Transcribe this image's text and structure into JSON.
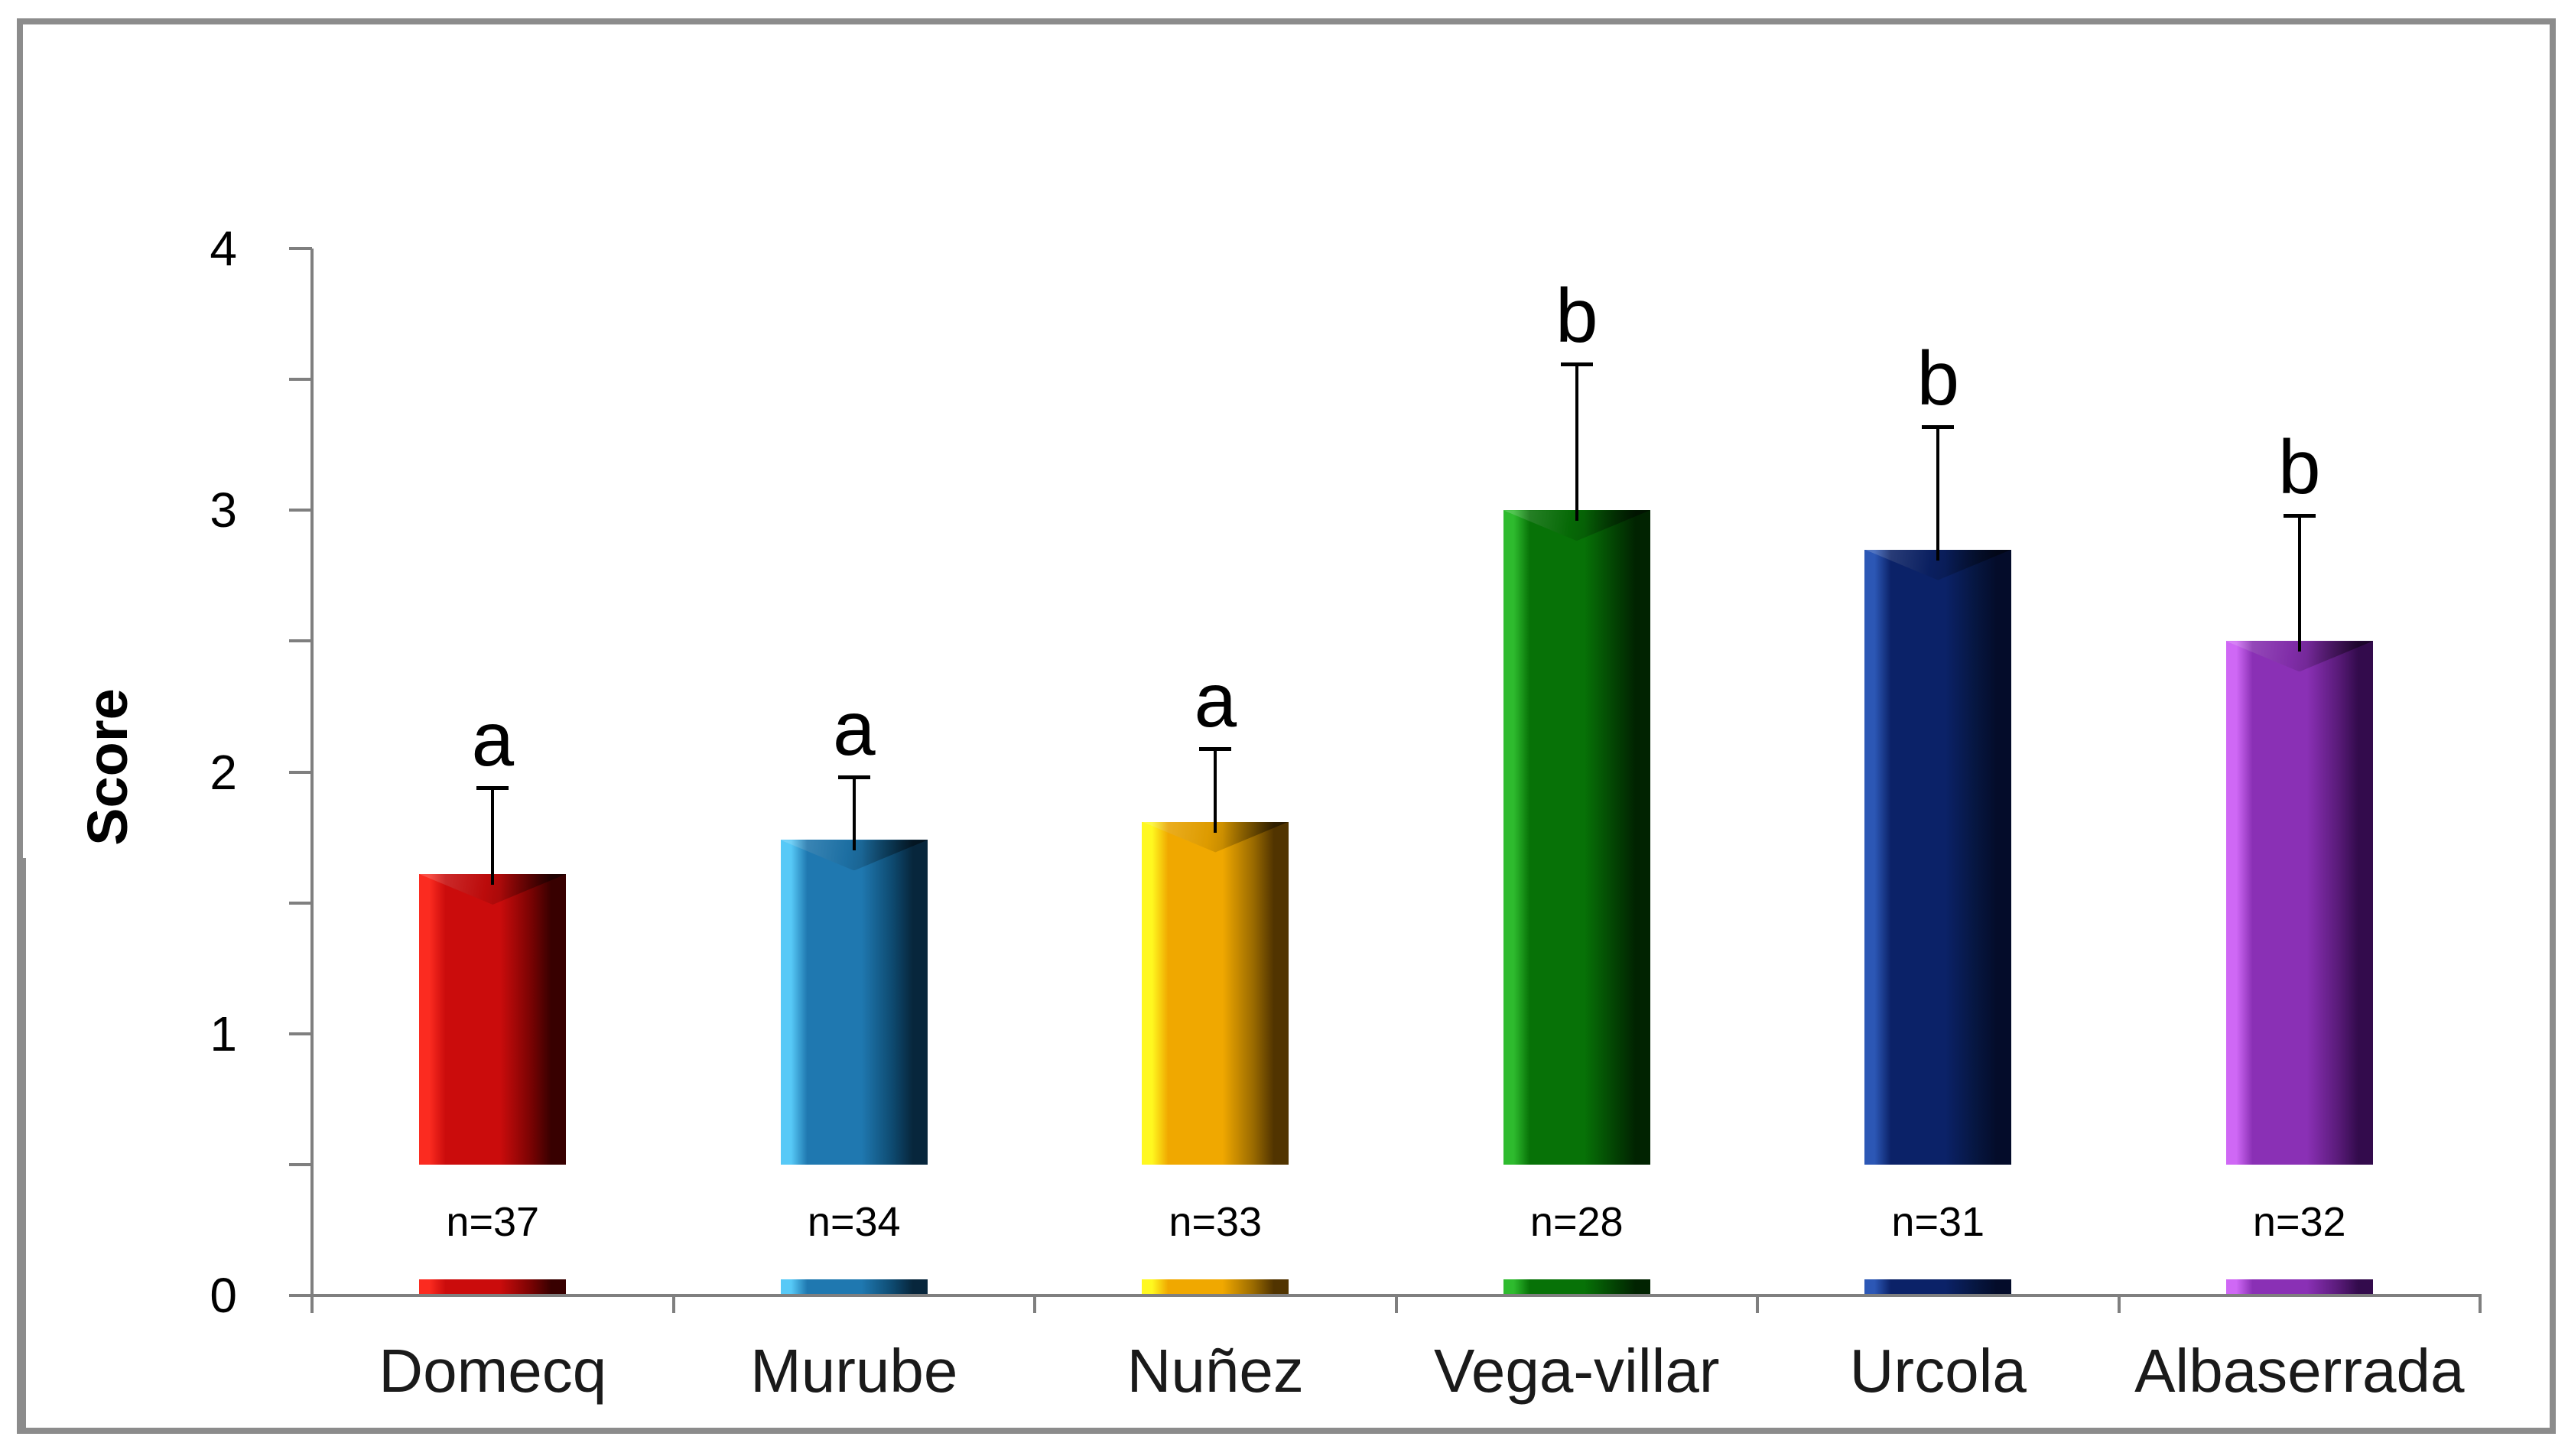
{
  "figure": {
    "background": "#ffffff",
    "border_color": "#8c8c8c",
    "axis_color": "#7f7f7f",
    "text_color": "#000000"
  },
  "chart_data": {
    "type": "bar",
    "title": "",
    "xlabel": "",
    "ylabel": "Score",
    "ylim": [
      0,
      4
    ],
    "y_major_tick_step": 1,
    "y_minor_tick_step": 0.5,
    "y_tick_labels": [
      "4",
      "3",
      "2",
      "1",
      "0"
    ],
    "y_tick_values": [
      4,
      3,
      2,
      1,
      0
    ],
    "grid": false,
    "legend": null,
    "categories": [
      "Domecq",
      "Murube",
      "Nuñez",
      "Vega-villar",
      "Urcola",
      "Albaserrada"
    ],
    "values": [
      1.61,
      1.74,
      1.81,
      3.0,
      2.85,
      2.5
    ],
    "errors_plus": [
      0.33,
      0.24,
      0.28,
      0.56,
      0.47,
      0.48
    ],
    "significance_letters": [
      "a",
      "a",
      "a",
      "b",
      "b",
      "b"
    ],
    "sample_size_labels": [
      "n=37",
      "n=34",
      "n=33",
      "n=28",
      "n=31",
      "n=32"
    ],
    "bar_style": "3d-bevel",
    "bar_colors": [
      {
        "name": "red",
        "hi": "#FB2B20",
        "mid": "#CB0C0C",
        "deep": "#7A0303",
        "dark": "#380000"
      },
      {
        "name": "blue",
        "hi": "#57C9F7",
        "mid": "#1F78B0",
        "deep": "#0E4A70",
        "dark": "#07263C"
      },
      {
        "name": "amber",
        "hi": "#FFF820",
        "mid": "#F0A800",
        "deep": "#9A6A00",
        "dark": "#513400"
      },
      {
        "name": "green",
        "hi": "#2EBB2E",
        "mid": "#077207",
        "deep": "#034203",
        "dark": "#012301"
      },
      {
        "name": "navy",
        "hi": "#2C57B5",
        "mid": "#0B2268",
        "deep": "#061640",
        "dark": "#040C2A"
      },
      {
        "name": "purple",
        "hi": "#CF68F5",
        "mid": "#8A30B5",
        "deep": "#5A1B7A",
        "dark": "#330B4C"
      }
    ]
  }
}
